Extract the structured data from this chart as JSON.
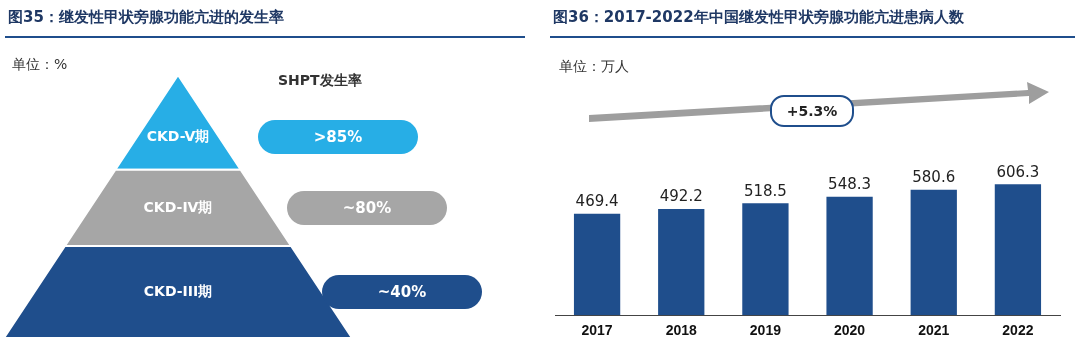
{
  "chart_data": [
    {
      "type": "other",
      "title": "图35：继发性甲状旁腺功能亢进的发生率",
      "annotations": [
        "单位：%"
      ],
      "legend_title": "SHPT发生率",
      "categories": [
        "CKD-V期",
        "CKD-IV期",
        "CKD-III期"
      ],
      "value_labels": [
        ">85%",
        "~80%",
        "~40%"
      ],
      "colors": [
        "#27aee6",
        "#a6a6a6",
        "#1f4e8c"
      ]
    },
    {
      "type": "bar",
      "title": "图36：2017-2022年中国继发性甲状旁腺功能亢进患病人数",
      "annotations": [
        "单位：万人",
        "+5.3%"
      ],
      "categories": [
        "2017",
        "2018",
        "2019",
        "2020",
        "2021",
        "2022"
      ],
      "values": [
        469.4,
        492.2,
        518.5,
        548.3,
        580.6,
        606.3
      ],
      "color": "#1f4e8c",
      "data_labels": true,
      "tick_labels": "x"
    }
  ]
}
